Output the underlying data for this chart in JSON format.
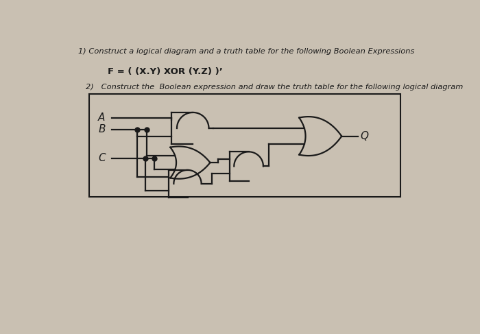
{
  "bg_color": "#c9c0b2",
  "text_color": "#1a1a1a",
  "line_color": "#1a1a1a",
  "title1": "1) Construct a logical diagram and a truth table for the following Boolean Expressions",
  "formula": "F = ( (X.Y) XOR (Y.Z) )’",
  "title2": "2)   Construct the  Boolean expression and draw the truth table for the following logical diagram"
}
